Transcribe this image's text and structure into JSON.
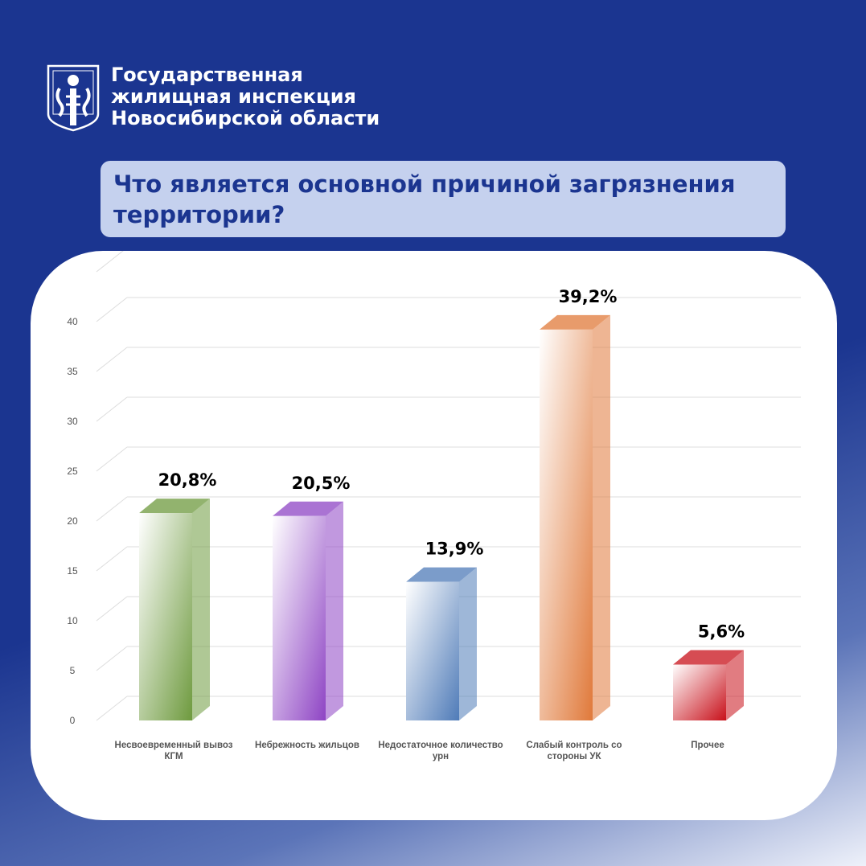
{
  "header": {
    "org_lines": [
      "Государственная",
      "жилищная инспекция",
      "Новосибирской области"
    ]
  },
  "question": {
    "text": "Что является основной причиной загрязнения территории?"
  },
  "chart_data": {
    "type": "bar",
    "categories": [
      [
        "Несвоевременный вывоз",
        "КГМ"
      ],
      [
        "Небрежность жильцов"
      ],
      [
        "Недостаточное количество",
        "урн"
      ],
      [
        "Слабый контроль со",
        "стороны УК"
      ],
      [
        "Прочее"
      ]
    ],
    "values": [
      20.8,
      20.5,
      13.9,
      39.2,
      5.6
    ],
    "data_labels": [
      "20,8%",
      "20,5%",
      "13,9%",
      "39,2%",
      "5,6%"
    ],
    "ylim": [
      0,
      40
    ],
    "yticks": [
      "0",
      "5",
      "10",
      "15",
      "20",
      "25",
      "30",
      "35",
      "40"
    ],
    "grid": true,
    "colors": [
      "#6e9a3e",
      "#8e44c4",
      "#4f7bb8",
      "#e0793a",
      "#c8101a"
    ]
  }
}
